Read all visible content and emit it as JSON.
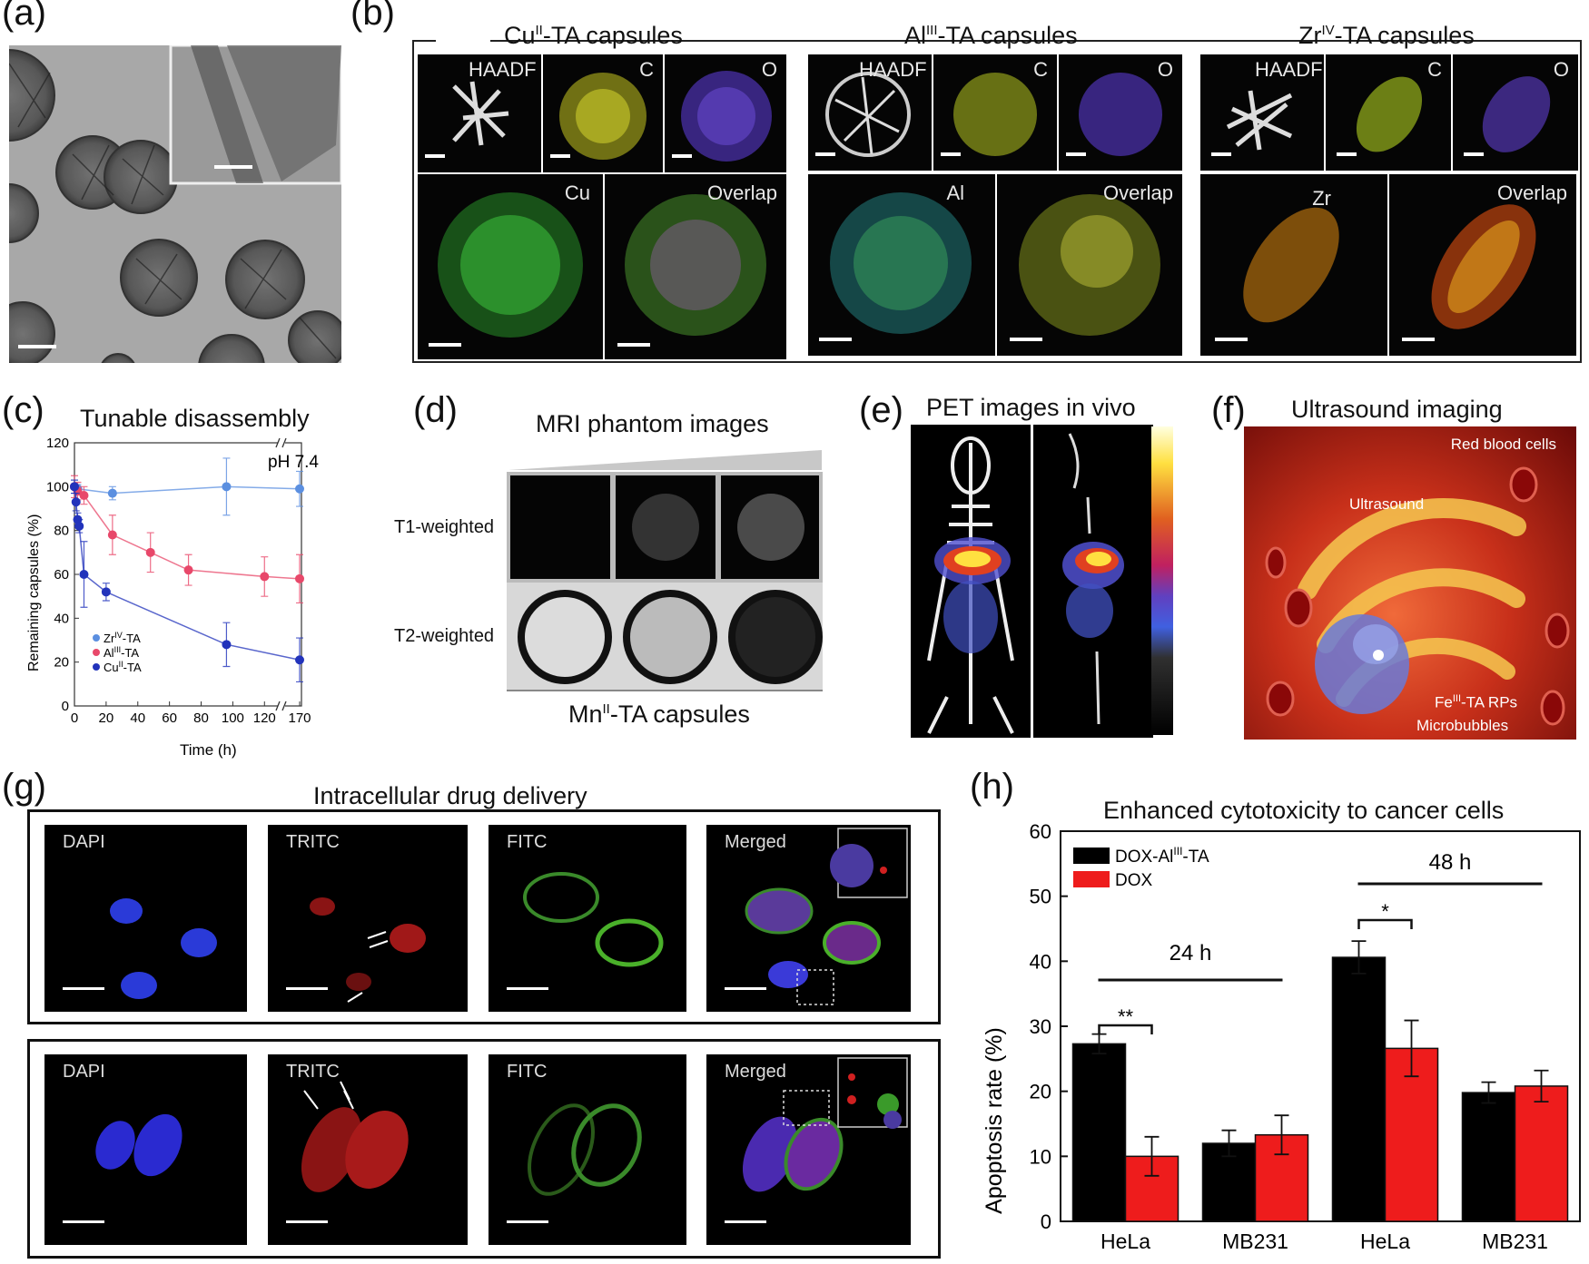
{
  "panels": {
    "a": {
      "label": "(a)"
    },
    "b": {
      "label": "(b)",
      "groups": [
        {
          "title_main": "Cu",
          "title_sup": "II",
          "title_rest": "-TA capsules",
          "tiles": [
            "HAADF",
            "C",
            "O",
            "Cu",
            "Overlap"
          ]
        },
        {
          "title_main": "Al",
          "title_sup": "III",
          "title_rest": "-TA capsules",
          "tiles": [
            "HAADF",
            "C",
            "O",
            "Al",
            "Overlap"
          ]
        },
        {
          "title_main": "Zr",
          "title_sup": "IV",
          "title_rest": "-TA capsules",
          "tiles": [
            "HAADF",
            "C",
            "O",
            "Zr",
            "Overlap"
          ]
        }
      ]
    },
    "c": {
      "label": "(c)",
      "title": "Tunable disassembly"
    },
    "d": {
      "label": "(d)",
      "title": "MRI phantom images",
      "row1": "T1-weighted",
      "row2": "T2-weighted",
      "caption_main": "Mn",
      "caption_sup": "II",
      "caption_rest": "-TA capsules"
    },
    "e": {
      "label": "(e)",
      "title": "PET images in vivo"
    },
    "f": {
      "label": "(f)",
      "title": "Ultrasound imaging",
      "rbc": "Red blood cells",
      "ultrasound": "Ultrasound",
      "rps_main": "Fe",
      "rps_sup": "III",
      "rps_rest": "-TA RPs",
      "microbubbles": "Microbubbles"
    },
    "g": {
      "label": "(g)",
      "title": "Intracellular drug delivery",
      "channels": [
        "DAPI",
        "TRITC",
        "FITC",
        "Merged"
      ]
    },
    "h": {
      "label": "(h)",
      "title": "Enhanced cytotoxicity to cancer cells"
    }
  },
  "chart_data": [
    {
      "id": "c",
      "type": "line",
      "title": "Tunable disassembly",
      "xlabel": "Time (h)",
      "ylabel": "Remaining capsules (%)",
      "annotation": "pH 7.4",
      "xticks": [
        "0",
        "20",
        "40",
        "60",
        "80",
        "100",
        "120",
        "170"
      ],
      "yticks": [
        "0",
        "20",
        "40",
        "60",
        "80",
        "100",
        "120"
      ],
      "ylim": [
        0,
        120
      ],
      "series": [
        {
          "name_main": "Zr",
          "name_sup": "IV",
          "name_rest": "-TA",
          "color": "#5b8fe0",
          "x": [
            0,
            2,
            24,
            96,
            170
          ],
          "y": [
            100,
            99,
            97,
            100,
            99
          ],
          "err": [
            3,
            2,
            3,
            13,
            8
          ]
        },
        {
          "name_main": "Al",
          "name_sup": "III",
          "name_rest": "-TA",
          "color": "#e8486a",
          "x": [
            0,
            2,
            6,
            24,
            48,
            72,
            120,
            170
          ],
          "y": [
            100,
            98,
            96,
            78,
            70,
            62,
            59,
            58
          ],
          "err": [
            5,
            4,
            4,
            9,
            9,
            7,
            9,
            11
          ]
        },
        {
          "name_main": "Cu",
          "name_sup": "II",
          "name_rest": "-TA",
          "color": "#2233bb",
          "x": [
            0,
            1,
            2,
            3,
            6,
            20,
            96,
            168
          ],
          "y": [
            100,
            93,
            85,
            82,
            60,
            52,
            28,
            21
          ],
          "err": [
            3,
            4,
            3,
            3,
            15,
            4,
            10,
            10
          ]
        }
      ]
    },
    {
      "id": "h",
      "type": "bar",
      "title": "Enhanced cytotoxicity to cancer cells",
      "ylabel": "Apoptosis rate (%)",
      "ylim": [
        0,
        60
      ],
      "yticks": [
        "0",
        "10",
        "20",
        "30",
        "40",
        "50",
        "60"
      ],
      "categories": [
        "HeLa",
        "MB231",
        "HeLa",
        "MB231"
      ],
      "series": [
        {
          "name_main": "DOX-Al",
          "name_sup": "III",
          "name_rest": "-TA",
          "color": "#000000",
          "values": [
            27.3,
            12.0,
            40.6,
            19.8
          ],
          "err": [
            1.5,
            2.0,
            2.5,
            1.6
          ]
        },
        {
          "name": "DOX",
          "color": "#ee1c1c",
          "values": [
            10.0,
            13.3,
            26.6,
            20.8
          ],
          "err": [
            3.0,
            3.0,
            4.3,
            2.4
          ]
        }
      ],
      "annotations": {
        "time_24": "24 h",
        "time_48": "48 h",
        "sig_24": "**",
        "sig_48": "*"
      }
    }
  ]
}
